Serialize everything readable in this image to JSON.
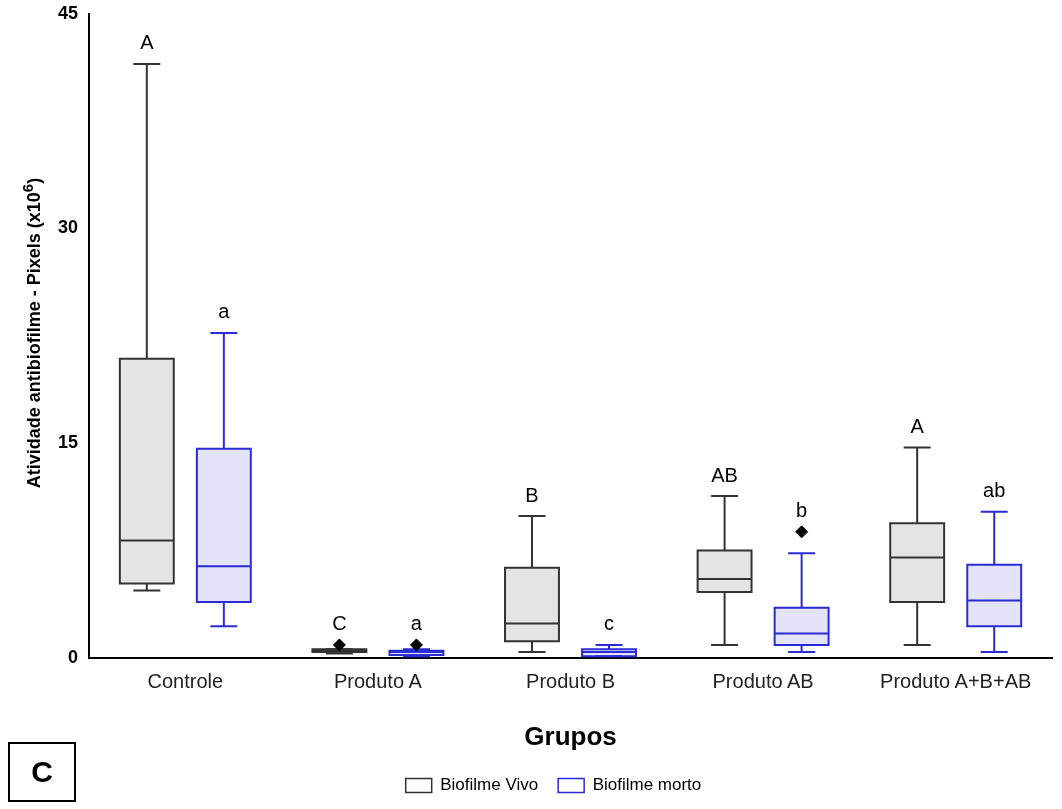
{
  "chart_data": {
    "type": "box",
    "xlabel": "Grupos",
    "ylabel": "Atividade antibiofilme - Pixels (x10$^{6}$)",
    "categories": [
      "Controle",
      "Produto A",
      "Produto B",
      "Produto AB",
      "Produto A+B+AB"
    ],
    "ylim": [
      0,
      45
    ],
    "yticks": [
      0,
      15,
      30,
      45
    ],
    "grid": false,
    "legend": "bottom",
    "marker": "diamond",
    "series": [
      {
        "name": "Biofilme Vivo",
        "color": "#333333",
        "boxes": [
          {
            "low": 4.7,
            "q1": 5.2,
            "median": 8.2,
            "q3": 20.9,
            "high": 41.5
          },
          {
            "low": 0.3,
            "q1": 0.4,
            "median": 0.5,
            "q3": 0.6,
            "high": 0.6,
            "outliers": [
              0.9
            ]
          },
          {
            "low": 0.4,
            "q1": 1.15,
            "median": 2.4,
            "q3": 6.3,
            "high": 9.9
          },
          {
            "low": 0.9,
            "q1": 4.6,
            "median": 5.5,
            "q3": 7.5,
            "high": 11.3
          },
          {
            "low": 0.9,
            "q1": 3.9,
            "median": 7.0,
            "q3": 9.4,
            "high": 14.7
          }
        ]
      },
      {
        "name": "Biofilme morto",
        "color": "#2b2bd6",
        "boxes": [
          {
            "low": 2.2,
            "q1": 3.9,
            "median": 6.4,
            "q3": 14.6,
            "high": 22.7
          },
          {
            "low": 0.1,
            "q1": 0.2,
            "median": 0.4,
            "q3": 0.5,
            "high": 0.6,
            "outliers": [
              0.9
            ]
          },
          {
            "low": 0.1,
            "q1": 0.1,
            "median": 0.4,
            "q3": 0.6,
            "high": 0.9
          },
          {
            "low": 0.4,
            "q1": 0.9,
            "median": 1.7,
            "q3": 3.5,
            "high": 7.3,
            "outliers": [
              8.8
            ]
          },
          {
            "low": 0.4,
            "q1": 2.2,
            "median": 4.0,
            "q3": 6.5,
            "high": 10.2
          }
        ]
      }
    ],
    "title": "C",
    "annotations": [
      "A",
      "a",
      "C",
      "a",
      "B",
      "c",
      "AB",
      "b",
      "A",
      "ab"
    ]
  }
}
